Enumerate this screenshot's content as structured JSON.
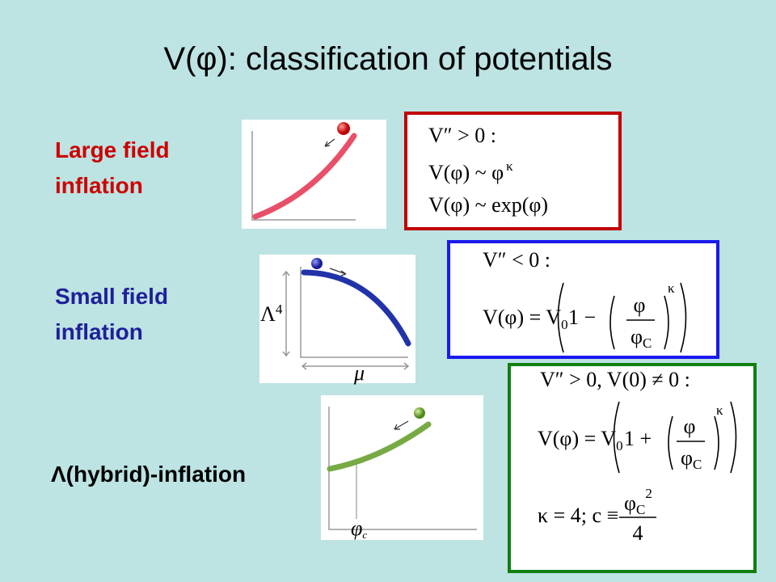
{
  "title": "V(φ): classification of potentials",
  "rows": [
    {
      "label": [
        "Large field",
        "inflation"
      ],
      "formula": {
        "condition": "V″ > 0 :",
        "power_law": {
          "text": "V(φ) ~ φ",
          "exponent": "κ"
        },
        "exponential": "V(φ) ~ exp(φ)"
      }
    },
    {
      "label": [
        "Small field",
        "inflation"
      ],
      "plot": {
        "y_axis": {
          "text": "Λ",
          "exponent": "4"
        },
        "x_axis": "μ"
      },
      "formula": {
        "condition": "V″ < 0 :",
        "potential": {
          "lhs": "V(φ) = V",
          "subscript": "0",
          "inner": "1 −",
          "numerator": "φ",
          "denominator": "φ",
          "denominator_subscript": "C",
          "exponent": "κ"
        }
      }
    },
    {
      "label": [
        "Λ(hybrid)-inflation"
      ],
      "plot": {
        "x_axis": {
          "text": "φ",
          "subscript": "c"
        }
      },
      "formula": {
        "condition": "V″ > 0, V(0) ≠ 0 :",
        "potential": {
          "lhs": "V(φ) = V",
          "subscript": "0",
          "inner": "1 +",
          "numerator": "φ",
          "denominator": "φ",
          "denominator_subscript": "C",
          "exponent": "κ"
        },
        "parameters": {
          "text": "κ = 4; c ≡",
          "numerator": "φ",
          "numerator_subscript": "C",
          "numerator_exponent": "2",
          "denominator": "4"
        }
      }
    }
  ]
}
